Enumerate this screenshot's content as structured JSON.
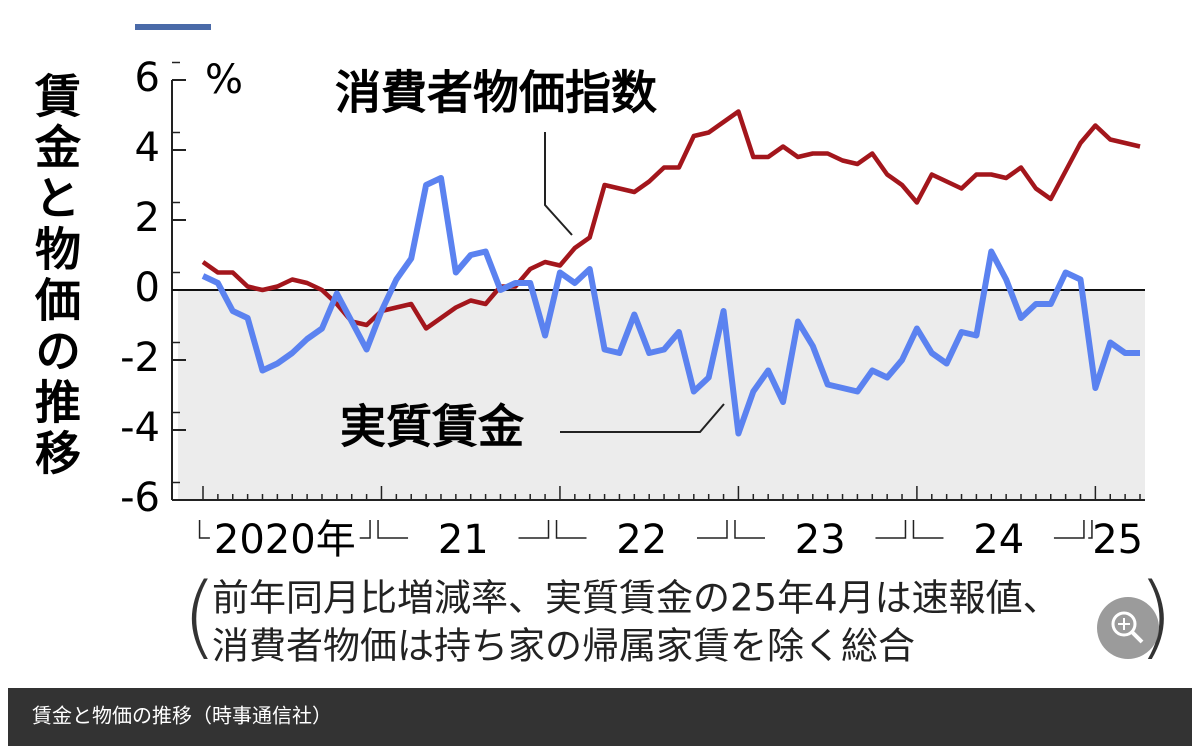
{
  "chart_data": {
    "type": "line",
    "title": "賃金と物価の推移",
    "y_unit": "%",
    "ylim": [
      -6,
      6
    ],
    "yticks": [
      -6,
      -4,
      -2,
      0,
      2,
      4,
      6
    ],
    "categories": [
      "2020年",
      null,
      null,
      null,
      null,
      null,
      null,
      null,
      null,
      null,
      null,
      null,
      "21",
      null,
      null,
      null,
      null,
      null,
      null,
      null,
      null,
      null,
      null,
      null,
      "22",
      null,
      null,
      null,
      null,
      null,
      null,
      null,
      null,
      null,
      null,
      null,
      "23",
      null,
      null,
      null,
      null,
      null,
      null,
      null,
      null,
      null,
      null,
      null,
      "24",
      null,
      null,
      null,
      null,
      null,
      null,
      null,
      null,
      null,
      null,
      null,
      "25",
      null,
      null,
      null
    ],
    "series": [
      {
        "name": "消費者物価指数",
        "color": "#a3161c",
        "values": [
          0.8,
          0.5,
          0.5,
          0.1,
          0.0,
          0.1,
          0.3,
          0.2,
          0.0,
          -0.4,
          -0.9,
          -1.0,
          -0.6,
          -0.5,
          -0.4,
          -1.1,
          -0.8,
          -0.5,
          -0.3,
          -0.4,
          0.1,
          0.1,
          0.6,
          0.8,
          0.7,
          1.2,
          1.5,
          3.0,
          2.9,
          2.8,
          3.1,
          3.5,
          3.5,
          4.4,
          4.5,
          4.8,
          5.1,
          3.8,
          3.8,
          4.1,
          3.8,
          3.9,
          3.9,
          3.7,
          3.6,
          3.9,
          3.3,
          3.0,
          2.5,
          3.3,
          3.1,
          2.9,
          3.3,
          3.3,
          3.2,
          3.5,
          2.9,
          2.6,
          3.4,
          4.2,
          4.7,
          4.3,
          4.2,
          4.1
        ]
      },
      {
        "name": "実質賃金",
        "color": "#5b82f0",
        "values": [
          0.4,
          0.2,
          -0.6,
          -0.8,
          -2.3,
          -2.1,
          -1.8,
          -1.4,
          -1.1,
          -0.1,
          -0.9,
          -1.7,
          -0.6,
          0.3,
          0.9,
          3.0,
          3.2,
          0.5,
          1.0,
          1.1,
          0.0,
          0.2,
          0.2,
          -1.3,
          0.5,
          0.2,
          0.6,
          -1.7,
          -1.8,
          -0.7,
          -1.8,
          -1.7,
          -1.2,
          -2.9,
          -2.5,
          -0.6,
          -4.1,
          -2.9,
          -2.3,
          -3.2,
          -0.9,
          -1.6,
          -2.7,
          -2.8,
          -2.9,
          -2.3,
          -2.5,
          -2.0,
          -1.1,
          -1.8,
          -2.1,
          -1.2,
          -1.3,
          1.1,
          0.3,
          -0.8,
          -0.4,
          -0.4,
          0.5,
          0.3,
          -2.8,
          -1.5,
          -1.8,
          -1.8
        ]
      }
    ],
    "note": [
      "前年同月比増減率、実質賃金の25年4月は速報値、",
      "消費者物価は持ち家の帰属家賃を除く総合"
    ],
    "caption": "賃金と物価の推移（時事通信社）"
  }
}
